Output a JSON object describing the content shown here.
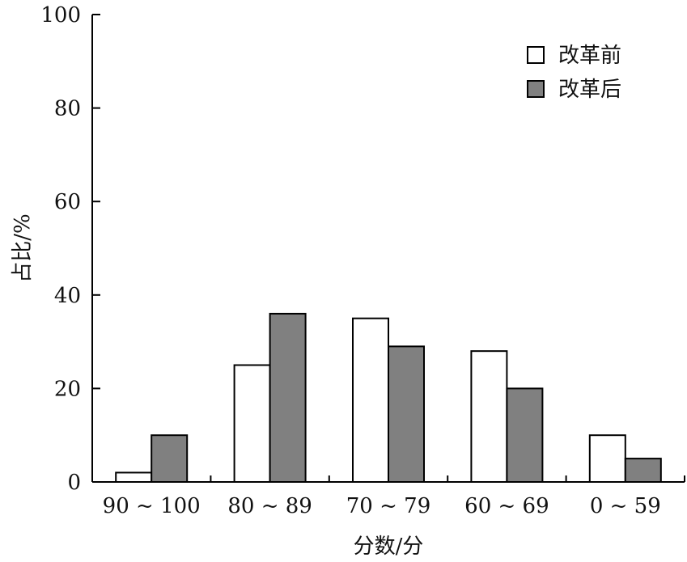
{
  "chart_data": {
    "type": "bar",
    "categories": [
      "90 ~ 100",
      "80 ~ 89",
      "70 ~ 79",
      "60 ~ 69",
      "0 ~ 59"
    ],
    "series": [
      {
        "name": "改革前",
        "values": [
          2,
          25,
          35,
          28,
          10
        ],
        "color": "#ffffff"
      },
      {
        "name": "改革后",
        "values": [
          10,
          36,
          29,
          20,
          5
        ],
        "color": "#808080"
      }
    ],
    "xlabel": "分数/分",
    "ylabel": "占比/%",
    "ylim": [
      0,
      100
    ],
    "yticks": [
      0,
      20,
      40,
      60,
      80,
      100
    ],
    "grid": false,
    "legend_position": "top-right"
  }
}
